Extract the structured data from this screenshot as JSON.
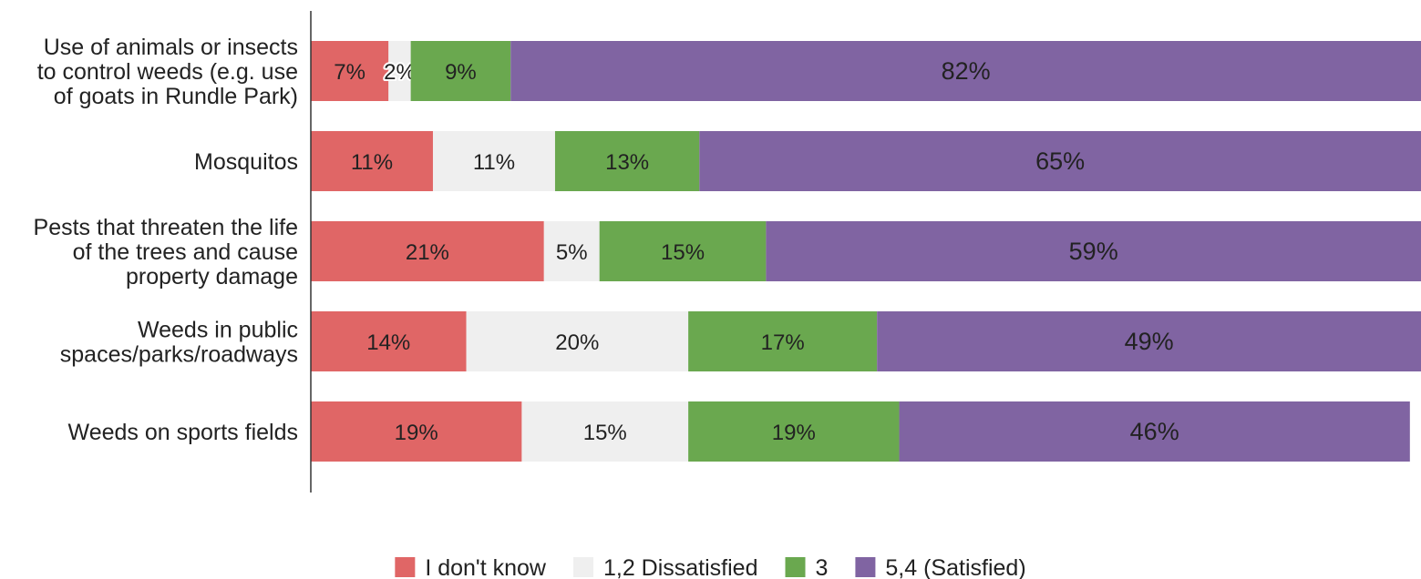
{
  "chart_data": {
    "type": "bar",
    "orientation": "horizontal",
    "stacked": true,
    "percent_stacked": true,
    "categories": [
      "Use of animals or insects to control weeds (e.g. use of goats in Rundle Park)",
      "Mosquitos",
      "Pests that threaten the life of the trees and cause property damage",
      "Weeds in public spaces/parks/roadways",
      "Weeds on sports fields"
    ],
    "series": [
      {
        "name": "I don't know",
        "color": "#e06666",
        "values": [
          7,
          11,
          21,
          14,
          19
        ]
      },
      {
        "name": "1,2 Dissatisfied",
        "color": "#efefef",
        "values": [
          2,
          11,
          5,
          20,
          15
        ]
      },
      {
        "name": "3",
        "color": "#6aa84f",
        "values": [
          9,
          13,
          15,
          17,
          19
        ]
      },
      {
        "name": "5,4 (Satisfied)",
        "color": "#8064a2",
        "values": [
          82,
          65,
          59,
          49,
          46
        ]
      }
    ],
    "data_labels": [
      [
        "7%",
        "11%",
        "21%",
        "14%",
        "19%"
      ],
      [
        "2%",
        "11%",
        "5%",
        "20%",
        "15%"
      ],
      [
        "9%",
        "13%",
        "15%",
        "17%",
        "19%"
      ],
      [
        "82%",
        "65%",
        "59%",
        "49%",
        "46%"
      ]
    ],
    "value_format": "percent",
    "xlim": [
      0,
      100
    ],
    "grid": false,
    "legend_position": "bottom",
    "title": "",
    "xlabel": "",
    "ylabel": ""
  }
}
